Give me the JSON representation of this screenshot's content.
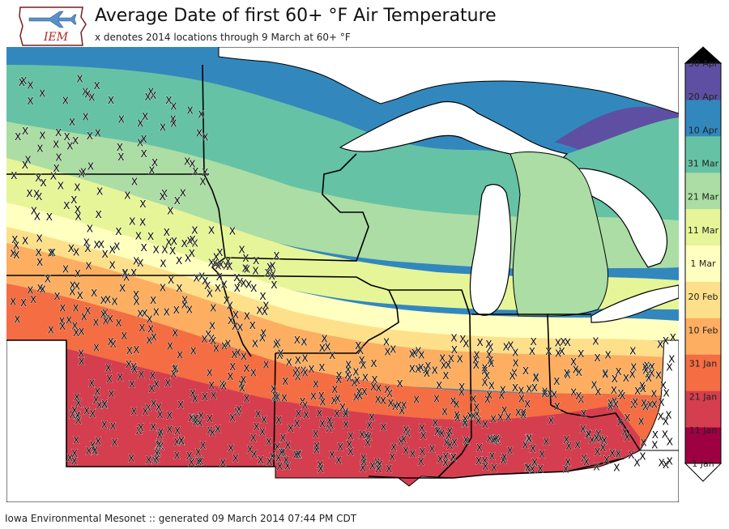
{
  "header": {
    "title": "Average Date of first 60+ °F Air Temperature",
    "subtitle": "x denotes 2014 locations through 9 March at 60+ °F"
  },
  "logo": {
    "text": "IEM"
  },
  "footer": {
    "text": "Iowa Environmental Mesonet :: generated 09 March 2014 07:44 PM CDT"
  },
  "legend": {
    "levels": [
      "1 Jan",
      "11 Jan",
      "21 Jan",
      "31 Jan",
      "10 Feb",
      "20 Feb",
      "1 Mar",
      "11 Mar",
      "21 Mar",
      "31 Mar",
      "10 Apr",
      "20 Apr",
      "30 Apr"
    ],
    "colors": [
      "#9e0142",
      "#d53e4f",
      "#f46d43",
      "#fdae61",
      "#fee08b",
      "#ffffbf",
      "#e6f598",
      "#abdda4",
      "#66c2a5",
      "#3288bd",
      "#5e4fa2",
      "#5e4fa2"
    ]
  },
  "marker": {
    "symbol": "X"
  },
  "map_colors": {
    "band_1": "#5e4fa2",
    "band_2": "#3288bd",
    "band_3": "#66c2a5",
    "band_4": "#abdda4",
    "band_5": "#e6f598",
    "band_6": "#ffffbf",
    "band_7": "#fee08b",
    "band_8": "#fdae61",
    "band_9": "#f46d43",
    "band_10": "#d53e4f",
    "lake": "#ffffff",
    "outside": "#ffffff"
  }
}
